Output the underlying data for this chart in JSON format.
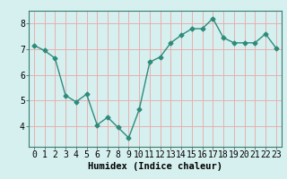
{
  "x": [
    0,
    1,
    2,
    3,
    4,
    5,
    6,
    7,
    8,
    9,
    10,
    11,
    12,
    13,
    14,
    15,
    16,
    17,
    18,
    19,
    20,
    21,
    22,
    23
  ],
  "y": [
    7.15,
    6.95,
    6.65,
    5.2,
    4.95,
    5.25,
    4.05,
    4.35,
    3.95,
    3.55,
    4.65,
    6.5,
    6.7,
    7.25,
    7.55,
    7.8,
    7.8,
    8.2,
    7.45,
    7.25,
    7.25,
    7.25,
    7.6,
    7.05
  ],
  "line_color": "#2e8b7a",
  "marker": "D",
  "marker_size": 2.5,
  "bg_color": "#d6f0f0",
  "grid_color": "#e8b0b0",
  "xlabel": "Humidex (Indice chaleur)",
  "xlim": [
    -0.5,
    23.5
  ],
  "ylim": [
    3.2,
    8.5
  ],
  "yticks": [
    4,
    5,
    6,
    7,
    8
  ],
  "xticks": [
    0,
    1,
    2,
    3,
    4,
    5,
    6,
    7,
    8,
    9,
    10,
    11,
    12,
    13,
    14,
    15,
    16,
    17,
    18,
    19,
    20,
    21,
    22,
    23
  ],
  "xlabel_fontsize": 7.5,
  "tick_fontsize": 7,
  "line_width": 1.0
}
